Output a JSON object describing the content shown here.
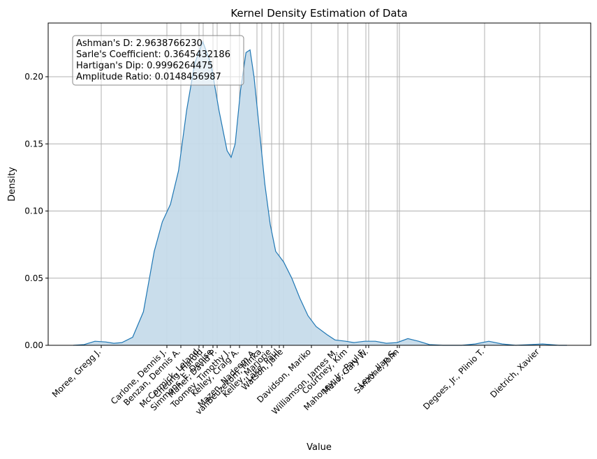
{
  "chart_data": {
    "type": "area",
    "title": "Kernel Density Estimation of Data",
    "xlabel": "Value",
    "ylabel": "Density",
    "ylim": [
      0,
      0.24
    ],
    "grid": true,
    "fill_color": "#c6dbea",
    "line_color": "#1f77b4",
    "grid_color": "#b0b0b0",
    "y_ticks": [
      {
        "value": 0.0,
        "label": "0.00"
      },
      {
        "value": 0.05,
        "label": "0.05"
      },
      {
        "value": 0.1,
        "label": "0.10"
      },
      {
        "value": 0.15,
        "label": "0.15"
      },
      {
        "value": 0.2,
        "label": "0.20"
      }
    ],
    "x_ticks": [
      "Moree, Gregg J.",
      "Carlone, Dennis J.",
      "Benzan, Dennis A.",
      "McCormick, Leland",
      "Cheung, Harold",
      "Simmons, E. Denise",
      "Maher, David P.",
      "Toomey, Timothy J.",
      "Kelley, Craig A.",
      "Mazen, Nadeem A.",
      "vanBeuzekom, Minka",
      "Kelley, Marjorie",
      "Lake, Paul",
      "Watson, Jane",
      "Davidson, Mariko",
      "Williamson, James M.",
      "Courtney, Kim",
      "Mahoney, Jr., Paul F.",
      "Mello, Gary W.",
      "Levy, Ilan S.",
      "Sanzone, John",
      "Degoes, Jr., Plinio T.",
      "Dietrich, Xavier"
    ],
    "curve": [
      [
        -0.4,
        0.0
      ],
      [
        0.0,
        0.0005
      ],
      [
        0.4,
        0.003
      ],
      [
        0.8,
        0.0025
      ],
      [
        1.1,
        0.0015
      ],
      [
        1.4,
        0.002
      ],
      [
        1.8,
        0.006
      ],
      [
        2.2,
        0.025
      ],
      [
        2.6,
        0.07
      ],
      [
        2.9,
        0.092
      ],
      [
        3.2,
        0.105
      ],
      [
        3.5,
        0.13
      ],
      [
        3.8,
        0.175
      ],
      [
        4.1,
        0.21
      ],
      [
        4.4,
        0.226
      ],
      [
        4.7,
        0.21
      ],
      [
        5.0,
        0.175
      ],
      [
        5.3,
        0.145
      ],
      [
        5.45,
        0.14
      ],
      [
        5.6,
        0.15
      ],
      [
        5.8,
        0.19
      ],
      [
        6.0,
        0.218
      ],
      [
        6.15,
        0.22
      ],
      [
        6.3,
        0.2
      ],
      [
        6.5,
        0.16
      ],
      [
        6.7,
        0.12
      ],
      [
        6.9,
        0.09
      ],
      [
        7.1,
        0.07
      ],
      [
        7.4,
        0.062
      ],
      [
        7.7,
        0.05
      ],
      [
        8.0,
        0.035
      ],
      [
        8.3,
        0.022
      ],
      [
        8.6,
        0.014
      ],
      [
        9.0,
        0.008
      ],
      [
        9.3,
        0.004
      ],
      [
        9.7,
        0.003
      ],
      [
        10.0,
        0.002
      ],
      [
        10.4,
        0.003
      ],
      [
        10.8,
        0.003
      ],
      [
        11.2,
        0.0015
      ],
      [
        11.6,
        0.002
      ],
      [
        12.0,
        0.005
      ],
      [
        12.4,
        0.003
      ],
      [
        12.8,
        0.0005
      ],
      [
        13.3,
        0.0
      ],
      [
        14.0,
        0.0
      ],
      [
        14.5,
        0.001
      ],
      [
        15.0,
        0.003
      ],
      [
        15.5,
        0.001
      ],
      [
        16.0,
        0.0
      ],
      [
        17.0,
        0.001
      ],
      [
        17.6,
        0.0
      ],
      [
        17.9,
        0.0
      ]
    ]
  },
  "stats_box": [
    "Ashman's D: 2.9638766230",
    "Sarle's Coefficient: 0.3645432186",
    "Hartigan's Dip: 0.9996264475",
    "Amplitude Ratio: 0.0148456987"
  ]
}
